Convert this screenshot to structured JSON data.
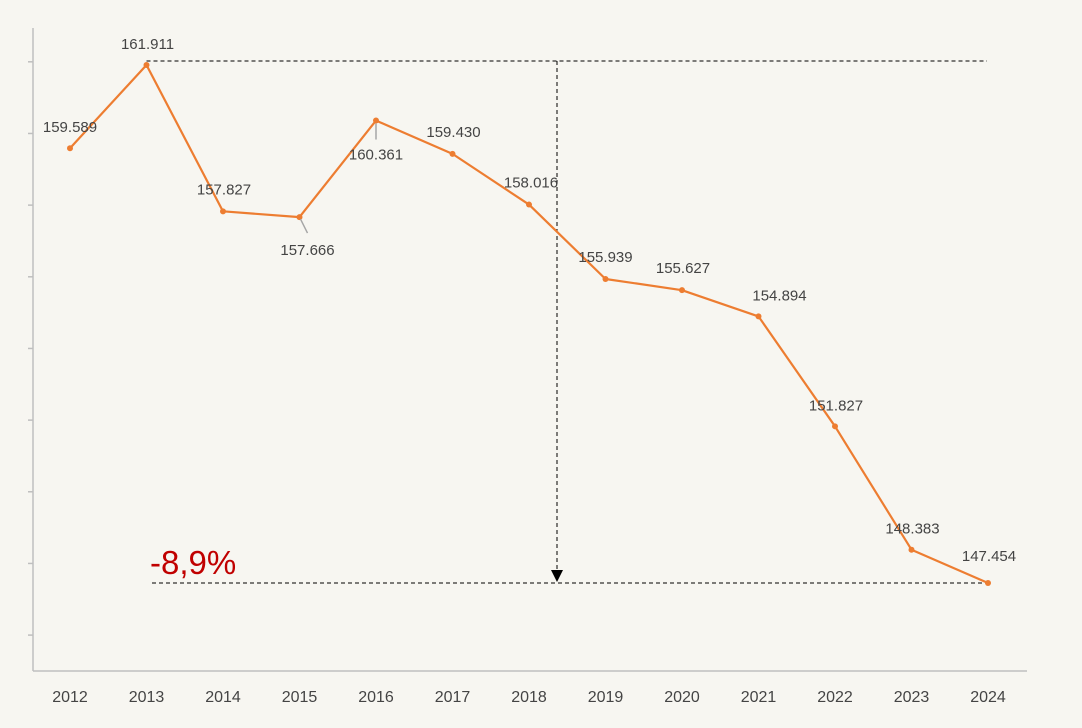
{
  "chart_data": {
    "type": "line",
    "title": "",
    "xlabel": "",
    "ylabel": "",
    "categories": [
      "2012",
      "2013",
      "2014",
      "2015",
      "2016",
      "2017",
      "2018",
      "2019",
      "2020",
      "2021",
      "2022",
      "2023",
      "2024"
    ],
    "series": [
      {
        "values": [
          159.589,
          161.911,
          157.827,
          157.666,
          160.361,
          159.43,
          158.016,
          155.939,
          155.627,
          154.894,
          151.827,
          148.383,
          147.454
        ],
        "labels": [
          "159.589",
          "161.911",
          "157.827",
          "157.666",
          "160.361",
          "159.430",
          "158.016",
          "155.939",
          "155.627",
          "154.894",
          "151.827",
          "148.383",
          "147.454"
        ]
      }
    ],
    "ylim": [
      145,
      164
    ],
    "grid": false,
    "annotation": {
      "text": "-8,9%",
      "from_category": "2013",
      "to_category": "2024",
      "arrow_category": "2018"
    },
    "colors": {
      "line": "#ed7d31",
      "axis": "#bfbfbf",
      "annotation": "#c00000",
      "guide": "#000000",
      "label_leader": "#a6a6a6"
    }
  }
}
